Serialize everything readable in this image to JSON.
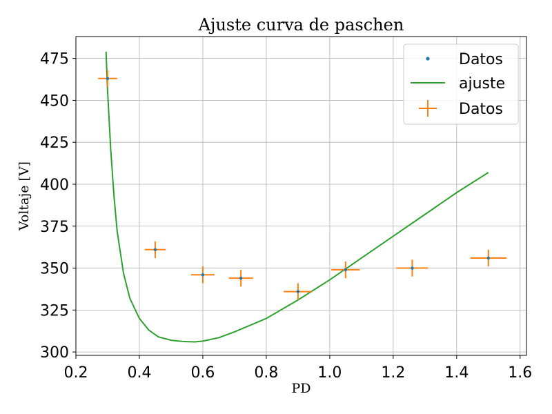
{
  "chart_data": {
    "type": "scatter",
    "title": "Ajuste curva de paschen",
    "xlabel": "PD",
    "ylabel": "Voltaje [V]",
    "xlim": [
      0.2,
      1.62
    ],
    "ylim": [
      298,
      488
    ],
    "xticks": [
      0.2,
      0.4,
      0.6,
      0.8,
      1.0,
      1.2,
      1.4,
      1.6
    ],
    "xtick_labels": [
      "0.2",
      "0.4",
      "0.6",
      "0.8",
      "1.0",
      "1.2",
      "1.4",
      "1.6"
    ],
    "yticks": [
      300,
      325,
      350,
      375,
      400,
      425,
      450,
      475
    ],
    "ytick_labels": [
      "300",
      "325",
      "350",
      "375",
      "400",
      "425",
      "450",
      "475"
    ],
    "grid": true,
    "legend_position": "top-right",
    "series": [
      {
        "name": "Datos",
        "kind": "points",
        "color": "#1f77b4",
        "x": [
          0.3,
          0.45,
          0.6,
          0.72,
          0.9,
          1.05,
          1.26,
          1.5
        ],
        "y": [
          463,
          361,
          346,
          344,
          336,
          349,
          350,
          356
        ]
      },
      {
        "name": "ajuste",
        "kind": "line",
        "color": "#2ca02c",
        "x": [
          0.295,
          0.3,
          0.31,
          0.32,
          0.33,
          0.35,
          0.37,
          0.4,
          0.43,
          0.46,
          0.5,
          0.54,
          0.575,
          0.6,
          0.65,
          0.7,
          0.8,
          0.9,
          1.0,
          1.1,
          1.2,
          1.3,
          1.4,
          1.5
        ],
        "y": [
          479,
          455,
          420,
          393,
          372,
          347,
          332,
          320,
          313,
          309,
          307,
          306.2,
          306,
          306.5,
          308.5,
          312,
          320,
          331,
          343,
          356,
          369,
          382,
          395,
          407
        ]
      },
      {
        "name": "Datos",
        "kind": "errorbar",
        "color": "#ff7f0e",
        "x": [
          0.3,
          0.45,
          0.6,
          0.72,
          0.9,
          1.05,
          1.26,
          1.5
        ],
        "y": [
          463,
          361,
          346,
          344,
          336,
          349,
          350,
          356
        ],
        "xerr": [
          0.03,
          0.033,
          0.037,
          0.038,
          0.045,
          0.045,
          0.05,
          0.057
        ],
        "yerr": [
          5,
          5,
          5,
          5,
          5,
          5,
          5,
          5
        ]
      }
    ]
  }
}
